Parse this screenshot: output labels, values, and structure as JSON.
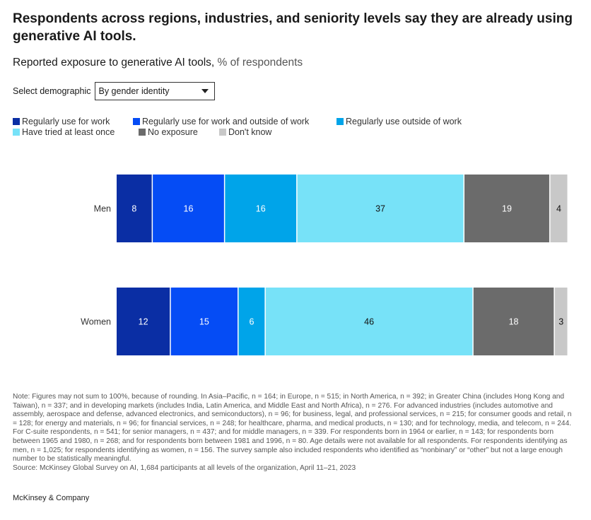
{
  "title": "Respondents across regions, industries, and seniority levels say they are already using generative AI tools.",
  "subtitle": {
    "text": "Reported exposure to generative AI tools,",
    "unit": "% of respondents"
  },
  "selector": {
    "label": "Select demographic",
    "value": "By gender identity"
  },
  "legend": [
    {
      "label": "Regularly use for work",
      "color": "#0a2ea4"
    },
    {
      "label": "Regularly use for work and outside of work",
      "color": "#054cf5"
    },
    {
      "label": "Regularly use outside of work",
      "color": "#00a4e9"
    },
    {
      "label": "Have tried at least once",
      "color": "#77e2f8"
    },
    {
      "label": "No exposure",
      "color": "#6b6b6b"
    },
    {
      "label": "Don't know",
      "color": "#c8c8c8"
    }
  ],
  "chart_data": {
    "type": "bar",
    "orientation": "horizontal",
    "stacked": true,
    "categories": [
      "Men",
      "Women"
    ],
    "series": [
      {
        "name": "Regularly use for work",
        "values": [
          8,
          12
        ],
        "color": "#0a2ea4",
        "label_color": "#ffffff"
      },
      {
        "name": "Regularly use for work and outside of work",
        "values": [
          16,
          15
        ],
        "color": "#054cf5",
        "label_color": "#ffffff"
      },
      {
        "name": "Regularly use outside of work",
        "values": [
          16,
          6
        ],
        "color": "#00a4e9",
        "label_color": "#ffffff"
      },
      {
        "name": "Have tried at least once",
        "values": [
          37,
          46
        ],
        "color": "#77e2f8",
        "label_color": "#111111"
      },
      {
        "name": "No exposure",
        "values": [
          19,
          18
        ],
        "color": "#6b6b6b",
        "label_color": "#ffffff"
      },
      {
        "name": "Don't know",
        "values": [
          4,
          3
        ],
        "color": "#c8c8c8",
        "label_color": "#111111"
      }
    ],
    "xlim": [
      0,
      100
    ],
    "grid": false
  },
  "note": "Note: Figures may not sum to 100%, because of rounding. In Asia–Pacific, n = 164; in Europe, n = 515; in North America, n = 392; in Greater China (includes Hong Kong and Taiwan), n = 337; and in developing markets (includes India, Latin America, and Middle East and North Africa), n = 276. For advanced industries (includes automotive and assembly, aerospace and defense, advanced electronics, and semiconductors), n = 96; for business, legal, and professional services, n = 215; for consumer goods and retail, n = 128; for energy and materials, n = 96; for financial services, n = 248; for healthcare, pharma, and medical products, n = 130; and for technology, media, and telecom, n = 244. For C-suite respondents, n = 541; for senior managers, n = 437; and for middle managers, n = 339. For respondents born in 1964 or earlier, n = 143; for respondents born between 1965 and 1980, n = 268; and for respondents born between 1981 and 1996, n = 80. Age details were not available for all respondents. For respondents identifying as men, n = 1,025; for respondents identifying as women, n = 156. The survey sample also included respondents who identified as “nonbinary” or “other” but not a large enough number to be statistically meaningful.",
  "source": "Source: McKinsey Global Survey on AI, 1,684 participants at all levels of the organization, April 11–21, 2023",
  "brand": "McKinsey & Company"
}
